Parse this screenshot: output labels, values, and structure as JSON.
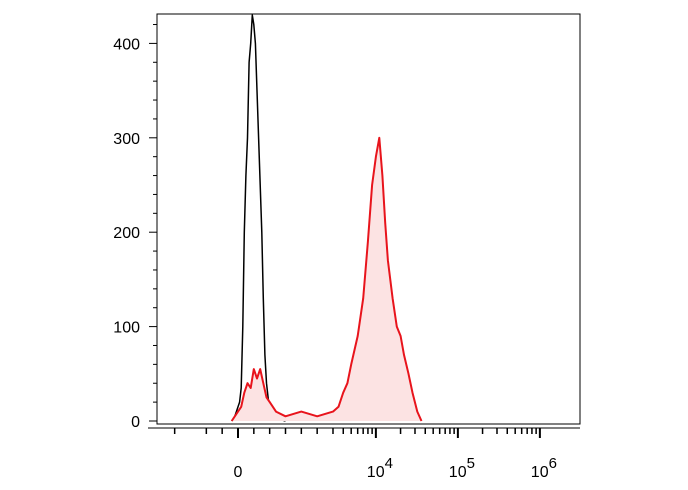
{
  "chart_data": {
    "type": "area",
    "title": "",
    "xlabel": "",
    "ylabel": "",
    "x_scale": "biexponential",
    "ylim": [
      0,
      430
    ],
    "grid": false,
    "legend": "none",
    "y_ticks": [
      {
        "value": 0,
        "label": "0"
      },
      {
        "value": 100,
        "label": "100"
      },
      {
        "value": 200,
        "label": "200"
      },
      {
        "value": 300,
        "label": "300"
      },
      {
        "value": 400,
        "label": "400"
      }
    ],
    "x_ticks": [
      {
        "value": 0,
        "label": "0",
        "base": "0",
        "exp": ""
      },
      {
        "value": 10000,
        "label": "10^4",
        "base": "10",
        "exp": "4"
      },
      {
        "value": 100000,
        "label": "10^5",
        "base": "10",
        "exp": "5"
      },
      {
        "value": 1000000,
        "label": "10^6",
        "base": "10",
        "exp": "6"
      }
    ],
    "series": [
      {
        "color": "#000000",
        "fill": "none",
        "x": [
          -200,
          -100,
          -50,
          0,
          50,
          100,
          150,
          200,
          250,
          300,
          350,
          400,
          450,
          500,
          550,
          600,
          650,
          700,
          750,
          800,
          850,
          900,
          950,
          1000,
          1100,
          1200,
          1300,
          1500
        ],
        "y": [
          0,
          5,
          10,
          15,
          20,
          35,
          100,
          200,
          260,
          300,
          380,
          400,
          430,
          420,
          400,
          350,
          300,
          250,
          200,
          130,
          70,
          40,
          25,
          12,
          8,
          5,
          2,
          0
        ]
      },
      {
        "color": "#e8141c",
        "fill": "#fce3e3",
        "x": [
          -200,
          0,
          100,
          200,
          300,
          400,
          500,
          600,
          700,
          800,
          900,
          1000,
          1200,
          1500,
          2000,
          2500,
          3000,
          3500,
          4000,
          4500,
          5000,
          6000,
          7000,
          8000,
          9000,
          10000,
          11000,
          12000,
          13000,
          14000,
          16000,
          18000,
          20000,
          22000,
          25000,
          28000,
          32000,
          36000
        ],
        "y": [
          0,
          10,
          15,
          30,
          40,
          35,
          55,
          45,
          55,
          40,
          25,
          20,
          10,
          5,
          10,
          5,
          10,
          15,
          30,
          40,
          60,
          90,
          130,
          190,
          250,
          280,
          300,
          260,
          210,
          170,
          130,
          100,
          90,
          70,
          50,
          30,
          10,
          0
        ]
      }
    ]
  }
}
